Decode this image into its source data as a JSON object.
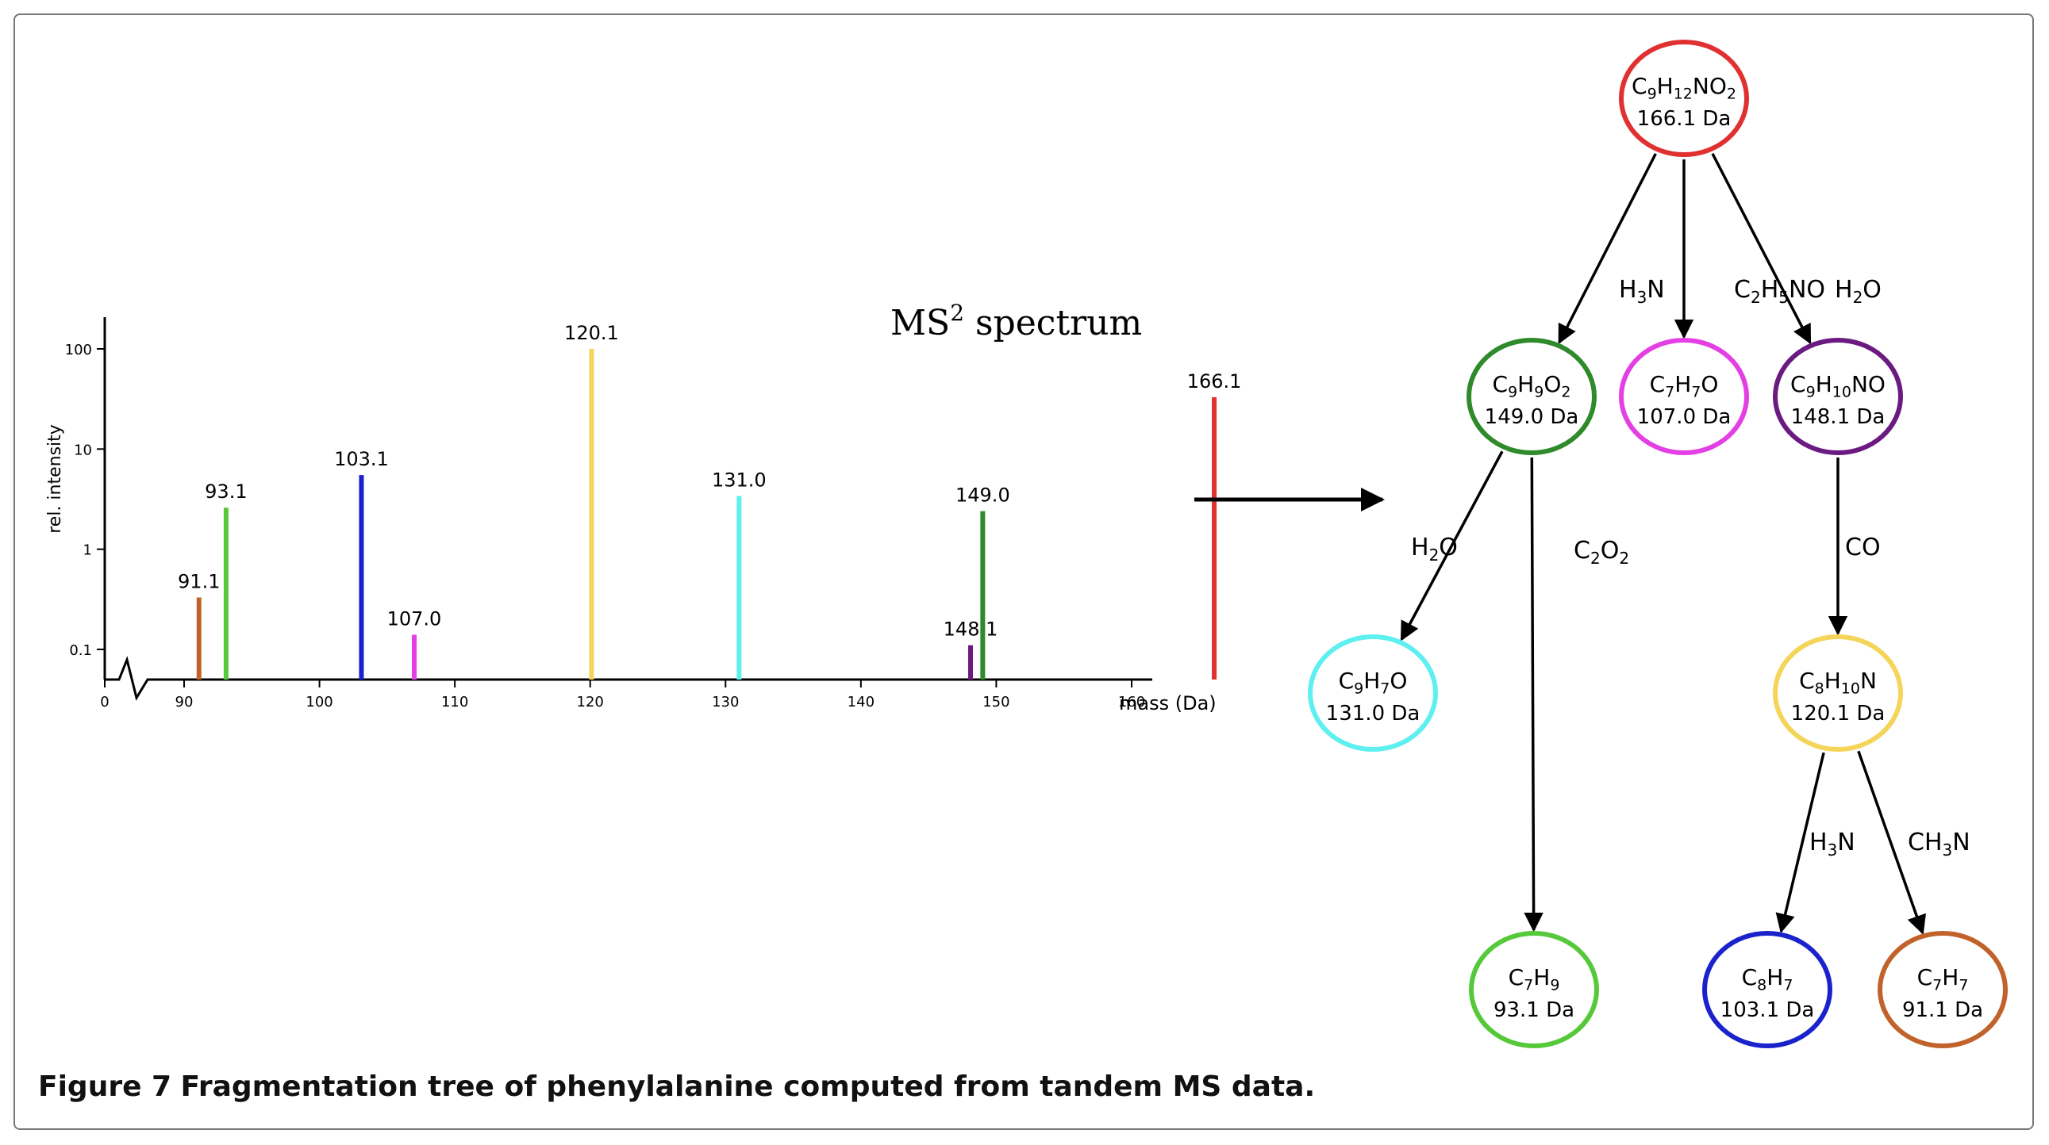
{
  "caption": {
    "label": "Figure 7",
    "text": "Fragmentation tree of phenylalanine computed from tandem MS data."
  },
  "spectrum_title": {
    "main": "MS",
    "sup": "2",
    "rest": " spectrum"
  },
  "chart_data": {
    "type": "bar",
    "title": "MS² spectrum",
    "xlabel": "mass (Da)",
    "ylabel": "rel. intensity",
    "yscale": "log",
    "x_ticks": [
      "0",
      "90",
      "100",
      "110",
      "120",
      "130",
      "140",
      "150",
      "160"
    ],
    "y_ticks": [
      "0.1",
      "1",
      "10",
      "100"
    ],
    "xlim": [
      88,
      167.5
    ],
    "ylim": [
      0.05,
      100
    ],
    "axis_break": "x",
    "series": [
      {
        "label": "91.1",
        "mass": 91.1,
        "intensity": 0.33,
        "color": "#c0622a"
      },
      {
        "label": "93.1",
        "mass": 93.1,
        "intensity": 2.6,
        "color": "#55c93a"
      },
      {
        "label": "103.1",
        "mass": 103.1,
        "intensity": 5.5,
        "color": "#1a22cc"
      },
      {
        "label": "107.0",
        "mass": 107.0,
        "intensity": 0.14,
        "color": "#e43fe4"
      },
      {
        "label": "120.1",
        "mass": 120.1,
        "intensity": 100,
        "color": "#f5d45a"
      },
      {
        "label": "131.0",
        "mass": 131.0,
        "intensity": 3.4,
        "color": "#5ef0f0"
      },
      {
        "label": "148.1",
        "mass": 148.1,
        "intensity": 0.11,
        "color": "#6a1a80"
      },
      {
        "label": "149.0",
        "mass": 149.0,
        "intensity": 2.4,
        "color": "#2e8a2a"
      },
      {
        "label": "166.1",
        "mass": 166.1,
        "intensity": 33,
        "color": "#e03030"
      }
    ]
  },
  "tree": {
    "nodes": [
      {
        "id": "root",
        "formula": [
          [
            "C",
            ""
          ],
          [
            "9",
            "s"
          ],
          [
            "H",
            ""
          ],
          [
            "12",
            "s"
          ],
          [
            "NO",
            ""
          ],
          [
            "2",
            "s"
          ]
        ],
        "mass": "166.1 Da",
        "color": "#e03030"
      },
      {
        "id": "n149",
        "formula": [
          [
            "C",
            ""
          ],
          [
            "9",
            "s"
          ],
          [
            "H",
            ""
          ],
          [
            "9",
            "s"
          ],
          [
            "O",
            ""
          ],
          [
            "2",
            "s"
          ]
        ],
        "mass": "149.0 Da",
        "color": "#2e8a2a"
      },
      {
        "id": "n107",
        "formula": [
          [
            "C",
            ""
          ],
          [
            "7",
            "s"
          ],
          [
            "H",
            ""
          ],
          [
            "7",
            "s"
          ],
          [
            "O",
            ""
          ]
        ],
        "mass": "107.0 Da",
        "color": "#e43fe4"
      },
      {
        "id": "n148",
        "formula": [
          [
            "C",
            ""
          ],
          [
            "9",
            "s"
          ],
          [
            "H",
            ""
          ],
          [
            "10",
            "s"
          ],
          [
            "NO",
            ""
          ]
        ],
        "mass": "148.1 Da",
        "color": "#6a1a80"
      },
      {
        "id": "n131",
        "formula": [
          [
            "C",
            ""
          ],
          [
            "9",
            "s"
          ],
          [
            "H",
            ""
          ],
          [
            "7",
            "s"
          ],
          [
            "O",
            ""
          ]
        ],
        "mass": "131.0 Da",
        "color": "#5ef0f0"
      },
      {
        "id": "n120",
        "formula": [
          [
            "C",
            ""
          ],
          [
            "8",
            "s"
          ],
          [
            "H",
            ""
          ],
          [
            "10",
            "s"
          ],
          [
            "N",
            ""
          ]
        ],
        "mass": "120.1 Da",
        "color": "#f5d45a"
      },
      {
        "id": "n93",
        "formula": [
          [
            "C",
            ""
          ],
          [
            "7",
            "s"
          ],
          [
            "H",
            ""
          ],
          [
            "9",
            "s"
          ]
        ],
        "mass": "93.1 Da",
        "color": "#55c93a"
      },
      {
        "id": "n103",
        "formula": [
          [
            "C",
            ""
          ],
          [
            "8",
            "s"
          ],
          [
            "H",
            ""
          ],
          [
            "7",
            "s"
          ]
        ],
        "mass": "103.1 Da",
        "color": "#1a22cc"
      },
      {
        "id": "n91",
        "formula": [
          [
            "C",
            ""
          ],
          [
            "7",
            "s"
          ],
          [
            "H",
            ""
          ],
          [
            "7",
            "s"
          ]
        ],
        "mass": "91.1 Da",
        "color": "#c0622a"
      }
    ],
    "edges": [
      {
        "from": "root",
        "to": "n149",
        "loss": [
          [
            "H",
            ""
          ],
          [
            "3",
            "s"
          ],
          [
            "N",
            ""
          ]
        ]
      },
      {
        "from": "root",
        "to": "n107",
        "loss": [
          [
            "C",
            ""
          ],
          [
            "2",
            "s"
          ],
          [
            "H",
            ""
          ],
          [
            "5",
            "s"
          ],
          [
            "NO",
            ""
          ]
        ]
      },
      {
        "from": "root",
        "to": "n148",
        "loss": [
          [
            "H",
            ""
          ],
          [
            "2",
            "s"
          ],
          [
            "O",
            ""
          ]
        ]
      },
      {
        "from": "n149",
        "to": "n131",
        "loss": [
          [
            "H",
            ""
          ],
          [
            "2",
            "s"
          ],
          [
            "O",
            ""
          ]
        ]
      },
      {
        "from": "n149",
        "to": "n93",
        "loss": [
          [
            "C",
            ""
          ],
          [
            "2",
            "s"
          ],
          [
            "O",
            ""
          ],
          [
            "2",
            "s"
          ]
        ]
      },
      {
        "from": "n148",
        "to": "n120",
        "loss": [
          [
            "CO",
            ""
          ]
        ]
      },
      {
        "from": "n120",
        "to": "n103",
        "loss": [
          [
            "H",
            ""
          ],
          [
            "3",
            "s"
          ],
          [
            "N",
            ""
          ]
        ]
      },
      {
        "from": "n120",
        "to": "n91",
        "loss": [
          [
            "CH",
            ""
          ],
          [
            "3",
            "s"
          ],
          [
            "N",
            ""
          ]
        ]
      }
    ]
  }
}
